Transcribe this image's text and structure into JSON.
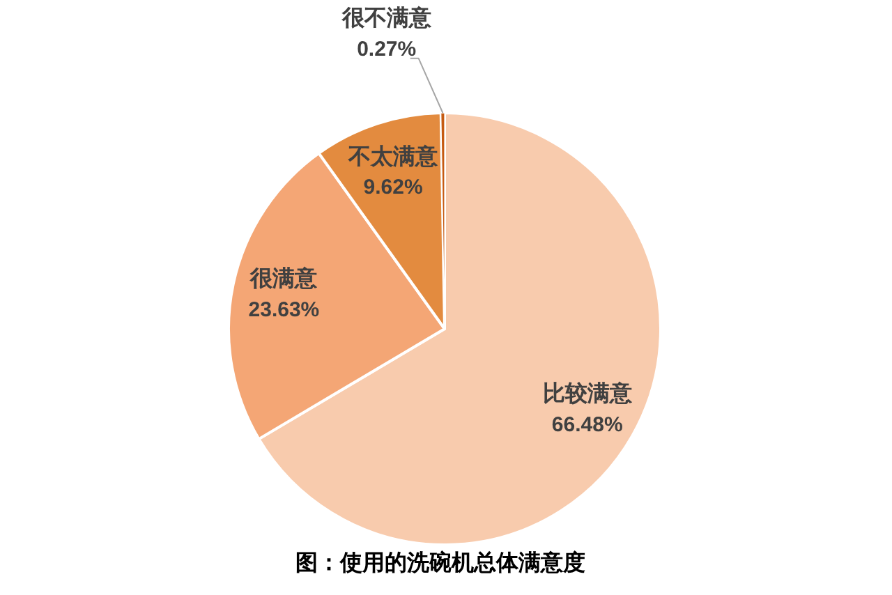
{
  "chart_data": {
    "type": "pie",
    "title": "图：使用的洗碗机总体满意度",
    "categories": [
      "比较满意",
      "很满意",
      "不太满意",
      "很不满意"
    ],
    "values": [
      66.48,
      23.63,
      9.62,
      0.27
    ],
    "colors": [
      "#f8cbad",
      "#f4a675",
      "#e38b3f",
      "#c55a11"
    ],
    "value_labels": [
      "66.48%",
      "23.63%",
      "9.62%",
      "0.27%"
    ]
  }
}
